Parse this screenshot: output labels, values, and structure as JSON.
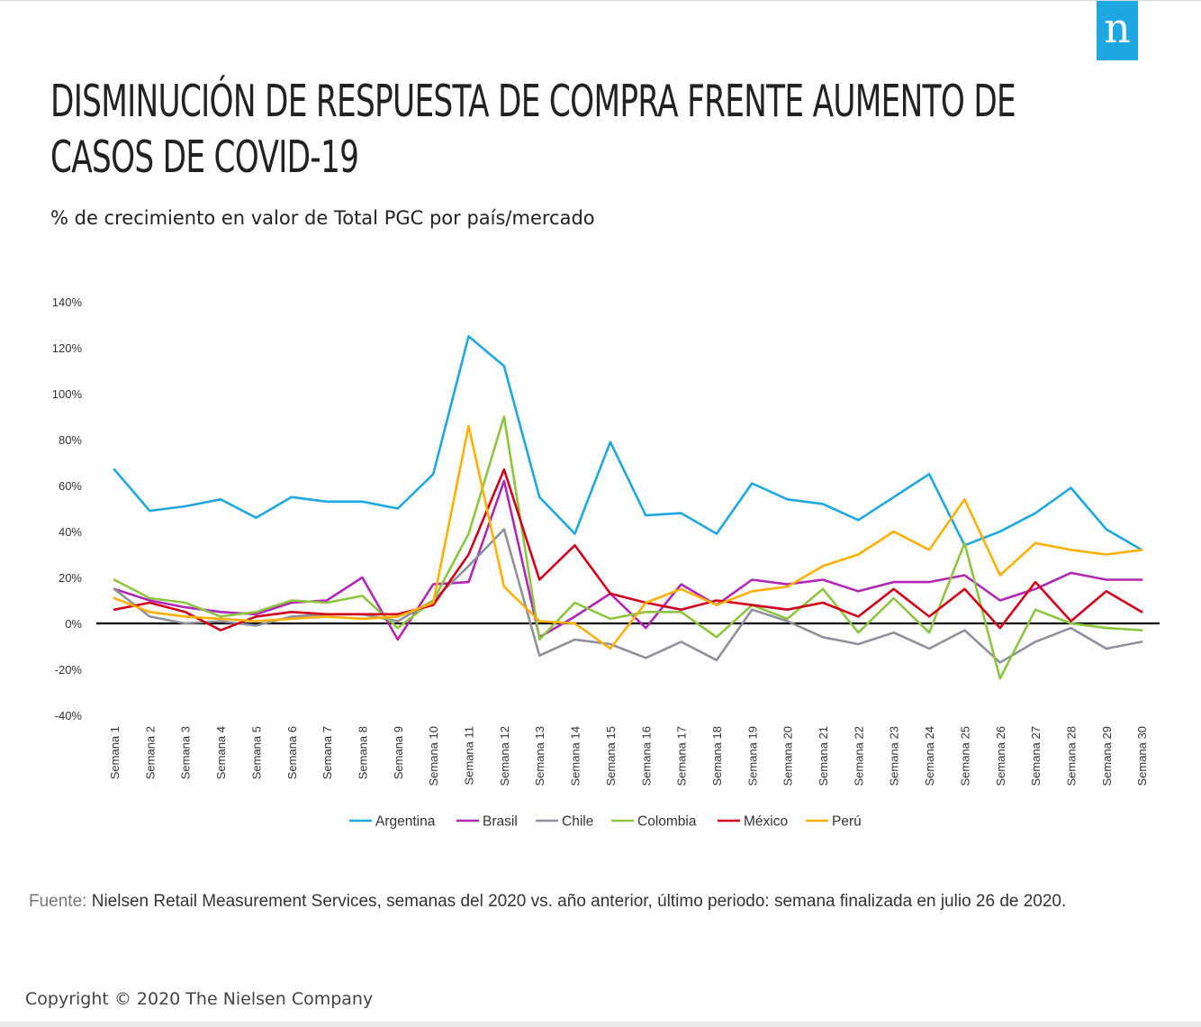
{
  "logo": {
    "letter": "n",
    "color": "#1ea7e1"
  },
  "title": "DISMINUCIÓN DE RESPUESTA DE COMPRA FRENTE AUMENTO DE CASOS DE COVID-19",
  "subtitle": "% de crecimiento  en valor de Total PGC por país/mercado",
  "source": {
    "label": "Fuente:",
    "text": "Nielsen Retail Measurement Services, semanas del 2020 vs. año anterior, último periodo: semana finalizada en julio 26 de 2020."
  },
  "copyright": "Copyright © 2020 The Nielsen Company",
  "chart_data": {
    "type": "line",
    "title": "",
    "xlabel": "",
    "ylabel": "",
    "ylim": [
      -40,
      140
    ],
    "yticks": [
      -40,
      -20,
      0,
      20,
      40,
      60,
      80,
      100,
      120,
      140
    ],
    "ytick_labels": [
      "-40%",
      "-20%",
      "0%",
      "20%",
      "40%",
      "60%",
      "80%",
      "100%",
      "120%",
      "140%"
    ],
    "grid": false,
    "zero_line": true,
    "legend": "bottom",
    "categories": [
      "Semana 1",
      "Semana 2",
      "Semana 3",
      "Semana 4",
      "Semana 5",
      "Semana 6",
      "Semana 7",
      "Semana 8",
      "Semana 9",
      "Semana 10",
      "Semana 11",
      "Semana 12",
      "Semana 13",
      "Semana 14",
      "Semana 15",
      "Semana 16",
      "Semana 17",
      "Semana 18",
      "Semana 19",
      "Semana 20",
      "Semana 21",
      "Semana 22",
      "Semana 23",
      "Semana 24",
      "Semana 25",
      "Semana 26",
      "Semana 27",
      "Semana 28",
      "Semana 29",
      "Semana 30"
    ],
    "series": [
      {
        "name": "Argentina",
        "color": "#1ea7e1",
        "values": [
          67,
          49,
          51,
          54,
          46,
          55,
          53,
          53,
          50,
          65,
          125,
          112,
          55,
          39,
          79,
          47,
          48,
          39,
          61,
          54,
          52,
          45,
          55,
          65,
          34,
          40,
          48,
          59,
          41,
          32
        ]
      },
      {
        "name": "Brasil",
        "color": "#b126b4",
        "values": [
          15,
          10,
          7,
          5,
          4,
          9,
          10,
          20,
          -7,
          17,
          18,
          62,
          -6,
          3,
          13,
          -2,
          17,
          8,
          19,
          17,
          19,
          14,
          18,
          18,
          21,
          10,
          15,
          22,
          19,
          19
        ]
      },
      {
        "name": "Chile",
        "color": "#8e919c",
        "values": [
          15,
          3,
          0,
          1,
          -1,
          3,
          4,
          4,
          1,
          10,
          25,
          41,
          -14,
          -7,
          -9,
          -15,
          -8,
          -16,
          6,
          1,
          -6,
          -9,
          -4,
          -11,
          -3,
          -17,
          -8,
          -2,
          -11,
          -8
        ]
      },
      {
        "name": "Colombia",
        "color": "#8cc63f",
        "values": [
          19,
          11,
          9,
          3,
          5,
          10,
          9,
          12,
          -2,
          10,
          39,
          90,
          -7,
          9,
          2,
          5,
          5,
          -6,
          8,
          2,
          15,
          -4,
          11,
          -4,
          35,
          -24,
          6,
          0,
          -2,
          -3
        ]
      },
      {
        "name": "México",
        "color": "#d0021b",
        "values": [
          6,
          9,
          5,
          -3,
          3,
          5,
          4,
          4,
          4,
          8,
          30,
          67,
          19,
          34,
          13,
          9,
          6,
          10,
          8,
          6,
          9,
          3,
          15,
          3,
          15,
          -2,
          18,
          1,
          14,
          5
        ]
      },
      {
        "name": "Perú",
        "color": "#ffb000",
        "values": [
          11,
          5,
          3,
          2,
          1,
          2,
          3,
          2,
          3,
          9,
          86,
          16,
          1,
          0,
          -11,
          9,
          15,
          8,
          14,
          16,
          25,
          30,
          40,
          32,
          54,
          21,
          35,
          32,
          30,
          32
        ]
      }
    ]
  }
}
